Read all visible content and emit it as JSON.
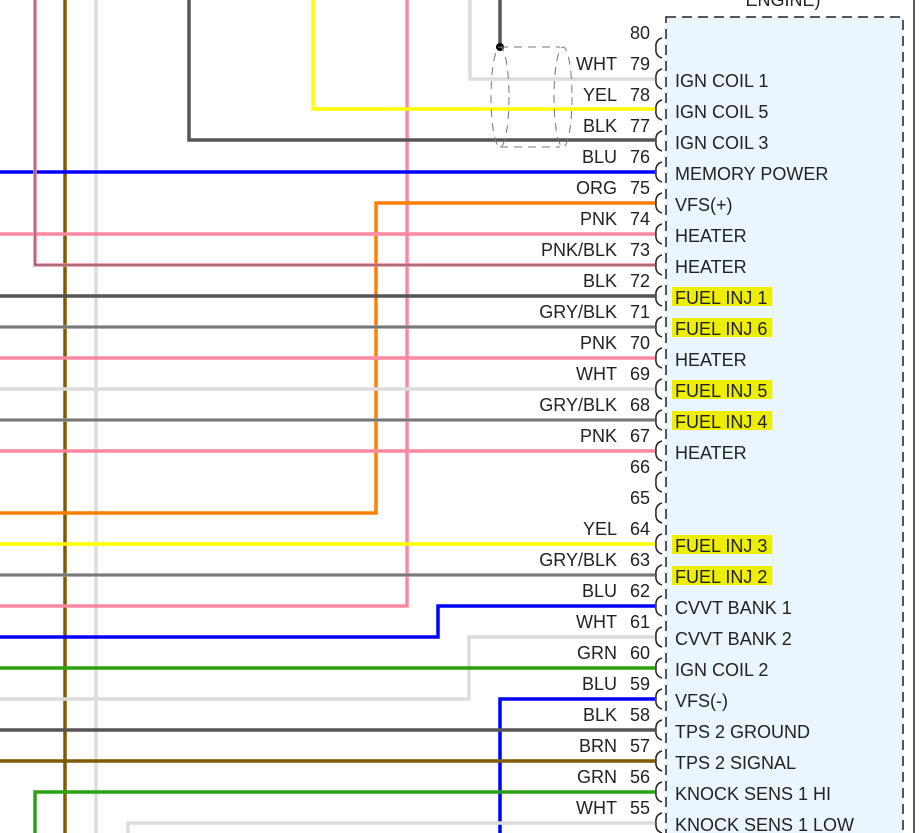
{
  "component": {
    "title": "ENGINE)",
    "fill": "#eaf5fd"
  },
  "wire_colors": {
    "WHT": "#dcdcdc",
    "YEL": "#ffff00",
    "BLK": "#555555",
    "BLU": "#0000ff",
    "ORG": "#ff8000",
    "PNK": "#ff88a0",
    "GRY": "#9a9a9a",
    "GRN": "#2ca010",
    "BRN": "#7f5a00"
  },
  "highlight_color": "#eeee00",
  "pins": [
    {
      "pin": "80",
      "wire": "",
      "function": "",
      "highlight": false
    },
    {
      "pin": "79",
      "wire": "WHT",
      "function": "IGN COIL 1",
      "highlight": false
    },
    {
      "pin": "78",
      "wire": "YEL",
      "function": "IGN COIL 5",
      "highlight": false
    },
    {
      "pin": "77",
      "wire": "BLK",
      "function": "IGN COIL 3",
      "highlight": false
    },
    {
      "pin": "76",
      "wire": "BLU",
      "function": "MEMORY POWER",
      "highlight": false
    },
    {
      "pin": "75",
      "wire": "ORG",
      "function": "VFS(+)",
      "highlight": false
    },
    {
      "pin": "74",
      "wire": "PNK",
      "function": "HEATER",
      "highlight": false
    },
    {
      "pin": "73",
      "wire": "PNK/BLK",
      "function": "HEATER",
      "highlight": false
    },
    {
      "pin": "72",
      "wire": "BLK",
      "function": "FUEL INJ 1",
      "highlight": true
    },
    {
      "pin": "71",
      "wire": "GRY/BLK",
      "function": "FUEL INJ 6",
      "highlight": true
    },
    {
      "pin": "70",
      "wire": "PNK",
      "function": "HEATER",
      "highlight": false
    },
    {
      "pin": "69",
      "wire": "WHT",
      "function": "FUEL INJ 5",
      "highlight": true
    },
    {
      "pin": "68",
      "wire": "GRY/BLK",
      "function": "FUEL INJ 4",
      "highlight": true
    },
    {
      "pin": "67",
      "wire": "PNK",
      "function": "HEATER",
      "highlight": false
    },
    {
      "pin": "66",
      "wire": "",
      "function": "",
      "highlight": false
    },
    {
      "pin": "65",
      "wire": "",
      "function": "",
      "highlight": false
    },
    {
      "pin": "64",
      "wire": "YEL",
      "function": "FUEL INJ 3",
      "highlight": true
    },
    {
      "pin": "63",
      "wire": "GRY/BLK",
      "function": "FUEL INJ 2",
      "highlight": true
    },
    {
      "pin": "62",
      "wire": "BLU",
      "function": "CVVT BANK 1",
      "highlight": false
    },
    {
      "pin": "61",
      "wire": "WHT",
      "function": "CVVT BANK 2",
      "highlight": false
    },
    {
      "pin": "60",
      "wire": "GRN",
      "function": "IGN COIL 2",
      "highlight": false
    },
    {
      "pin": "59",
      "wire": "BLU",
      "function": "VFS(-)",
      "highlight": false
    },
    {
      "pin": "58",
      "wire": "BLK",
      "function": "TPS 2 GROUND",
      "highlight": false
    },
    {
      "pin": "57",
      "wire": "BRN",
      "function": "TPS 2 SIGNAL",
      "highlight": false
    },
    {
      "pin": "56",
      "wire": "GRN",
      "function": "KNOCK SENS 1 HI",
      "highlight": false
    },
    {
      "pin": "55",
      "wire": "WHT",
      "function": "KNOCK SENS 1 LOW",
      "highlight": false
    }
  ]
}
